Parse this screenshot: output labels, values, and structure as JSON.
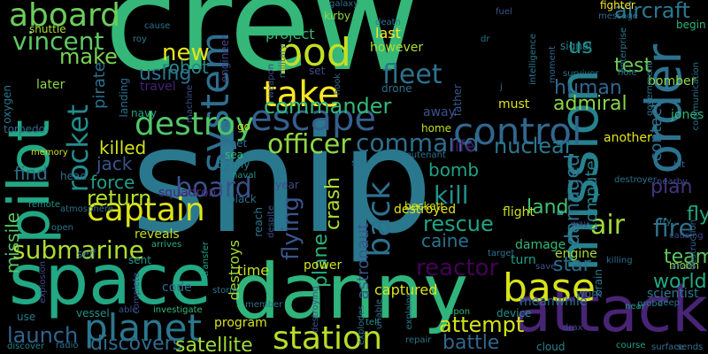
{
  "words": [
    {
      "text": "crew",
      "color": "#35b779"
    },
    {
      "text": "ship",
      "color": "#2a788e"
    },
    {
      "text": "space",
      "color": "#22a884"
    },
    {
      "text": "danny",
      "color": "#2fb47c"
    },
    {
      "text": "attack",
      "color": "#482475"
    },
    {
      "text": "mission",
      "color": "#26828e"
    },
    {
      "text": "pilot",
      "color": "#22a785"
    },
    {
      "text": "order",
      "color": "#2c728e"
    },
    {
      "text": "planet",
      "color": "#2a778e"
    },
    {
      "text": "station",
      "color": "#b8de29"
    },
    {
      "text": "control",
      "color": "#31668e"
    },
    {
      "text": "base",
      "color": "#d8e219"
    },
    {
      "text": "pod",
      "color": "#c2df23"
    },
    {
      "text": "system",
      "color": "#2e6e8e"
    },
    {
      "text": "aboard",
      "color": "#6ccd5a"
    },
    {
      "text": "destroy",
      "color": "#52c569"
    },
    {
      "text": "escape",
      "color": "#355f8d"
    },
    {
      "text": "take",
      "color": "#fde725"
    },
    {
      "text": "rocket",
      "color": "#228d8d"
    },
    {
      "text": "captain",
      "color": "#dde318"
    },
    {
      "text": "vincent",
      "color": "#5ec962"
    },
    {
      "text": "board",
      "color": "#3b518b"
    },
    {
      "text": "fleet",
      "color": "#2c738e"
    },
    {
      "text": "command",
      "color": "#2e6f8e"
    },
    {
      "text": "new",
      "color": "#e5e419"
    },
    {
      "text": "submarine",
      "color": "#addc30"
    },
    {
      "text": "back",
      "color": "#2c718e"
    },
    {
      "text": "officer",
      "color": "#8fd744"
    },
    {
      "text": "commander",
      "color": "#35b779"
    },
    {
      "text": "kill",
      "color": "#21918c"
    },
    {
      "text": "air",
      "color": "#a0da39"
    },
    {
      "text": "fire",
      "color": "#2d708e"
    },
    {
      "text": "launch",
      "color": "#32648e"
    },
    {
      "text": "flying",
      "color": "#39558c"
    },
    {
      "text": "reactor",
      "color": "#440154"
    },
    {
      "text": "nuclear",
      "color": "#2a778e"
    },
    {
      "text": "rescue",
      "color": "#20a486"
    },
    {
      "text": "return",
      "color": "#b5de2b"
    },
    {
      "text": "discovers",
      "color": "#2f6c8e"
    },
    {
      "text": "satellite",
      "color": "#a2da37"
    },
    {
      "text": "attempt",
      "color": "#d5e21a"
    },
    {
      "text": "battle",
      "color": "#31678e"
    },
    {
      "text": "us",
      "color": "#21918c"
    },
    {
      "text": "make",
      "color": "#7ad151"
    },
    {
      "text": "aircraft",
      "color": "#29798e"
    },
    {
      "text": "robot",
      "color": "#228b8d"
    },
    {
      "text": "using",
      "color": "#2c738e"
    },
    {
      "text": "human",
      "color": "#31668e"
    },
    {
      "text": "test",
      "color": "#6ece58"
    },
    {
      "text": "admiral",
      "color": "#89d548"
    },
    {
      "text": "damaged",
      "color": "#2c738e"
    },
    {
      "text": "land",
      "color": "#43bf71"
    },
    {
      "text": "plan",
      "color": "#46337e"
    },
    {
      "text": "fly",
      "color": "#23a983"
    },
    {
      "text": "team",
      "color": "#5cc863"
    },
    {
      "text": "world",
      "color": "#22a884"
    },
    {
      "text": "star",
      "color": "#2e6e8e"
    },
    {
      "text": "killed",
      "color": "#d2e21b"
    },
    {
      "text": "jack",
      "color": "#3b528b"
    },
    {
      "text": "find",
      "color": "#2e6f8e"
    },
    {
      "text": "force",
      "color": "#1f9f88"
    },
    {
      "text": "missile",
      "color": "#5ac864"
    },
    {
      "text": "contact",
      "color": "#2c728e"
    },
    {
      "text": "computer",
      "color": "#26828e"
    },
    {
      "text": "plane",
      "color": "#2db27d"
    },
    {
      "text": "crash",
      "color": "#addc30"
    },
    {
      "text": "astronaut",
      "color": "#39568c"
    },
    {
      "text": "bomb",
      "color": "#20a386"
    },
    {
      "text": "caine",
      "color": "#2c728e"
    },
    {
      "text": "life",
      "color": "#481a6c"
    },
    {
      "text": "pirate",
      "color": "#2d708e"
    },
    {
      "text": "project",
      "color": "#37b878"
    },
    {
      "text": "last",
      "color": "#fde725"
    },
    {
      "text": "however",
      "color": "#addc30"
    },
    {
      "text": "captured",
      "color": "#dde318"
    },
    {
      "text": "destroyed",
      "color": "#e5e419"
    },
    {
      "text": "destroys",
      "color": "#a2da37"
    },
    {
      "text": "reveals",
      "color": "#bddf26"
    },
    {
      "text": "code",
      "color": "#2d708e"
    },
    {
      "text": "power",
      "color": "#d0e11c"
    },
    {
      "text": "time",
      "color": "#c5e021"
    },
    {
      "text": "program",
      "color": "#d8e219"
    },
    {
      "text": "engine",
      "color": "#a5db36"
    },
    {
      "text": "flight",
      "color": "#cae11f"
    },
    {
      "text": "damage",
      "color": "#35b779"
    },
    {
      "text": "turn",
      "color": "#1f9e89"
    },
    {
      "text": "beckett",
      "color": "#cde11d"
    },
    {
      "text": "home",
      "color": "#c2df23"
    },
    {
      "text": "away",
      "color": "#3a538b"
    },
    {
      "text": "must",
      "color": "#dde318"
    },
    {
      "text": "another",
      "color": "#e5e419"
    },
    {
      "text": "moon",
      "color": "#addc30"
    },
    {
      "text": "scientist",
      "color": "#2a788e"
    },
    {
      "text": "jones",
      "color": "#32b67a"
    },
    {
      "text": "engineer",
      "color": "#3f4788"
    },
    {
      "text": "meet",
      "color": "#2e6e8e"
    },
    {
      "text": "sea",
      "color": "#37b878"
    },
    {
      "text": "benny",
      "color": "#26828e"
    },
    {
      "text": "squadron",
      "color": "#482878"
    },
    {
      "text": "later",
      "color": "#8bd646"
    },
    {
      "text": "navy",
      "color": "#20a386"
    },
    {
      "text": "torpedo",
      "color": "#2e6e8e"
    },
    {
      "text": "oxygen",
      "color": "#2a778e"
    },
    {
      "text": "shuttle",
      "color": "#a8db34"
    },
    {
      "text": "kirby",
      "color": "#8fd744"
    },
    {
      "text": "fighter",
      "color": "#fde725"
    },
    {
      "text": "bomber",
      "color": "#90d743"
    },
    {
      "text": "begin",
      "color": "#2fb47c"
    },
    {
      "text": "go",
      "color": "#cde11d"
    },
    {
      "text": "landing",
      "color": "#2d708e"
    },
    {
      "text": "travel",
      "color": "#482173"
    },
    {
      "text": "signal",
      "color": "#25848e"
    },
    {
      "text": "survivor",
      "color": "#2c728e"
    },
    {
      "text": "father",
      "color": "#39568c"
    },
    {
      "text": "drone",
      "color": "#2e6e8e"
    },
    {
      "text": "hook",
      "color": "#31668e"
    },
    {
      "text": "set",
      "color": "#3e4989"
    },
    {
      "text": "naval",
      "color": "#1f968b"
    },
    {
      "text": "head",
      "color": "#2c728e"
    },
    {
      "text": "memory",
      "color": "#d0e11c"
    },
    {
      "text": "remote",
      "color": "#21918c"
    },
    {
      "text": "atmosphere",
      "color": "#2e6e8e"
    },
    {
      "text": "sent",
      "color": "#1f978b"
    },
    {
      "text": "self",
      "color": "#2c728e"
    },
    {
      "text": "open",
      "color": "#2a778e"
    },
    {
      "text": "explosion",
      "color": "#404688"
    },
    {
      "text": "use",
      "color": "#29798e"
    },
    {
      "text": "vessel",
      "color": "#21918c"
    },
    {
      "text": "able",
      "color": "#39558c"
    },
    {
      "text": "investigate",
      "color": "#37b878"
    },
    {
      "text": "discover",
      "color": "#26828e"
    },
    {
      "text": "radio",
      "color": "#2c728e"
    },
    {
      "text": "transfer",
      "color": "#20a486"
    },
    {
      "text": "arrives",
      "color": "#25ab82"
    },
    {
      "text": "reach",
      "color": "#2a778e"
    },
    {
      "text": "despite",
      "color": "#3b518b"
    },
    {
      "text": "black",
      "color": "#2e6e8e"
    },
    {
      "text": "year",
      "color": "#3e4989"
    },
    {
      "text": "stop",
      "color": "#2c728e"
    },
    {
      "text": "lieutenant",
      "color": "#2c738e"
    },
    {
      "text": "destroying",
      "color": "#3b528b"
    },
    {
      "text": "explodes",
      "color": "#2c728e"
    },
    {
      "text": "tell",
      "color": "#1f958b"
    },
    {
      "text": "unable",
      "color": "#2e6f8e"
    },
    {
      "text": "repair",
      "color": "#2a768e"
    },
    {
      "text": "explains",
      "color": "#29798e"
    },
    {
      "text": "upon",
      "color": "#35b779"
    },
    {
      "text": "device",
      "color": "#21918c"
    },
    {
      "text": "meanwhile",
      "color": "#2e6e8e"
    },
    {
      "text": "brain",
      "color": "#2a778e"
    },
    {
      "text": "drax",
      "color": "#3e4989"
    },
    {
      "text": "cloud",
      "color": "#26828e"
    },
    {
      "text": "course",
      "color": "#1fa188"
    },
    {
      "text": "sends",
      "color": "#2c728e"
    },
    {
      "text": "surface",
      "color": "#2e6e8e"
    },
    {
      "text": "work",
      "color": "#31668e"
    },
    {
      "text": "save",
      "color": "#3b528b"
    },
    {
      "text": "target",
      "color": "#2c728e"
    },
    {
      "text": "killing",
      "color": "#2e6e8e"
    },
    {
      "text": "way",
      "color": "#3f4788"
    },
    {
      "text": "probe",
      "color": "#2a788e"
    },
    {
      "text": "deep",
      "color": "#2c728e"
    },
    {
      "text": "near",
      "color": "#1f968b"
    },
    {
      "text": "andie",
      "color": "#2e6f8e"
    },
    {
      "text": "causing",
      "color": "#404688"
    },
    {
      "text": "try",
      "color": "#2a778e"
    },
    {
      "text": "hit",
      "color": "#2e6e8e"
    },
    {
      "text": "nearby",
      "color": "#3b518b"
    },
    {
      "text": "destroyer",
      "color": "#2c728e"
    },
    {
      "text": "destruction",
      "color": "#31668e"
    },
    {
      "text": "hole",
      "color": "#2a778e"
    },
    {
      "text": "government",
      "color": "#2d708e"
    },
    {
      "text": "communication",
      "color": "#2c728e"
    },
    {
      "text": "intelligence",
      "color": "#29798e"
    },
    {
      "text": "moment",
      "color": "#31668e"
    },
    {
      "text": "message",
      "color": "#2e6e8e"
    },
    {
      "text": "enterprise",
      "color": "#2a788e"
    },
    {
      "text": "fuel",
      "color": "#3b518b"
    },
    {
      "text": "galaxy",
      "color": "#2c728e"
    },
    {
      "text": "death",
      "color": "#2a788e"
    },
    {
      "text": "weapon",
      "color": "#3e4989"
    },
    {
      "text": "military",
      "color": "#2e6e8e"
    },
    {
      "text": "machine",
      "color": "#3b528b"
    },
    {
      "text": "cause",
      "color": "#2c728e"
    },
    {
      "text": "roy",
      "color": "#29798e"
    },
    {
      "text": "storm",
      "color": "#2a778e"
    },
    {
      "text": "complete",
      "color": "#3f4788"
    },
    {
      "text": "member",
      "color": "#2c728e"
    },
    {
      "text": "j",
      "color": "#2e6e8e"
    },
    {
      "text": "dr",
      "color": "#2c728e"
    }
  ]
}
